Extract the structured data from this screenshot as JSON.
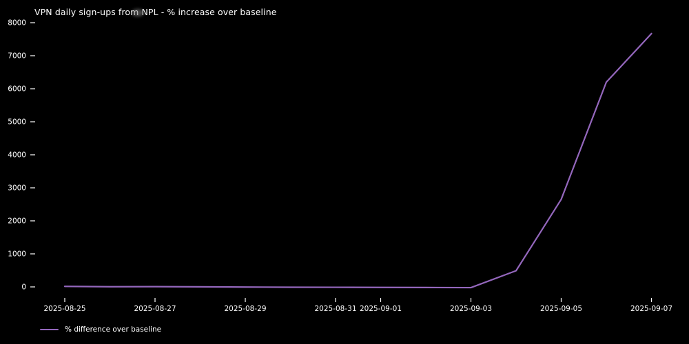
{
  "chart_data": {
    "type": "line",
    "title": "VPN daily sign-ups from NPL - % increase over baseline",
    "x": [
      "2025-08-25",
      "2025-08-26",
      "2025-08-27",
      "2025-08-28",
      "2025-08-29",
      "2025-08-30",
      "2025-08-31",
      "2025-09-01",
      "2025-09-02",
      "2025-09-03",
      "2025-09-04",
      "2025-09-05",
      "2025-09-06",
      "2025-09-07"
    ],
    "series": [
      {
        "name": "% difference over baseline",
        "values": [
          15,
          5,
          8,
          2,
          -5,
          -10,
          -12,
          -15,
          -18,
          -22,
          490,
          2650,
          6200,
          7670
        ],
        "color": "#9467bd"
      }
    ],
    "xtick_labels": [
      "2025-08-25",
      "2025-08-27",
      "2025-08-29",
      "2025-08-31",
      "2025-09-01",
      "2025-09-03",
      "2025-09-05",
      "2025-09-07"
    ],
    "xtick_day_index": [
      0,
      2,
      4,
      6,
      7,
      9,
      11,
      13
    ],
    "yticks": [
      0,
      1000,
      2000,
      3000,
      4000,
      5000,
      6000,
      7000,
      8000
    ],
    "ylim": [
      -405,
      8055
    ],
    "xlabel": "",
    "ylabel": "",
    "grid": false,
    "legend_position": "lower-left-below-axis",
    "background": "#000000",
    "text_color": "#ffffff"
  },
  "legend": {
    "label": "% difference over baseline"
  }
}
